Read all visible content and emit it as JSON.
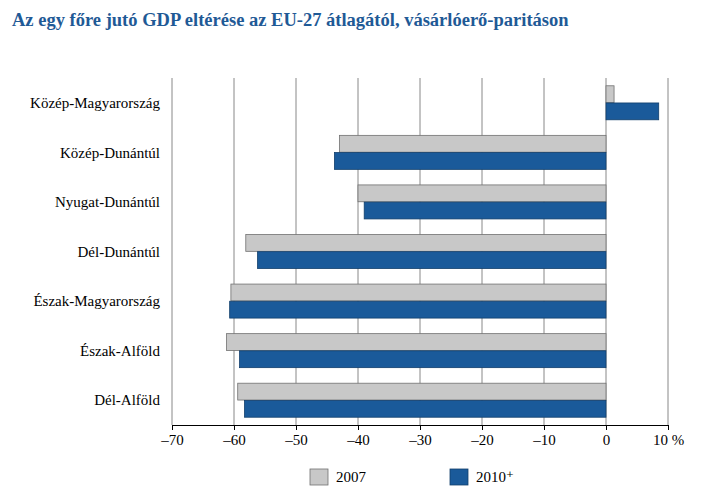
{
  "chart_data": {
    "type": "bar",
    "orientation": "horizontal",
    "title": "Az egy főre jutó GDP eltérése az EU-27 átlagától, vásárlóerő-paritáson",
    "categories": [
      "Közép-Magyarország",
      "Közép-Dunántúl",
      "Nyugat-Dunántúl",
      "Dél-Dunántúl",
      "Észak-Magyarország",
      "Észak-Alföld",
      "Dél-Alföld"
    ],
    "series": [
      {
        "name": "2007",
        "color": "#c8c8c8",
        "values": [
          1.3,
          -43.0,
          -40.0,
          -58.1,
          -60.5,
          -61.2,
          -59.4
        ]
      },
      {
        "name": "2010⁺",
        "color": "#1a5a9a",
        "values": [
          8.5,
          -43.8,
          -39.0,
          -56.2,
          -60.7,
          -59.1,
          -58.3
        ]
      }
    ],
    "xlim": [
      -70,
      10
    ],
    "xticks": [
      {
        "value": -70,
        "label": "–70"
      },
      {
        "value": -60,
        "label": "–60"
      },
      {
        "value": -50,
        "label": "–50"
      },
      {
        "value": -40,
        "label": "–40"
      },
      {
        "value": -30,
        "label": "–30"
      },
      {
        "value": -20,
        "label": "–20"
      },
      {
        "value": -10,
        "label": "–10"
      },
      0,
      {
        "value": 10,
        "label": "10 %"
      }
    ],
    "grid": true,
    "legend": "bottom"
  }
}
